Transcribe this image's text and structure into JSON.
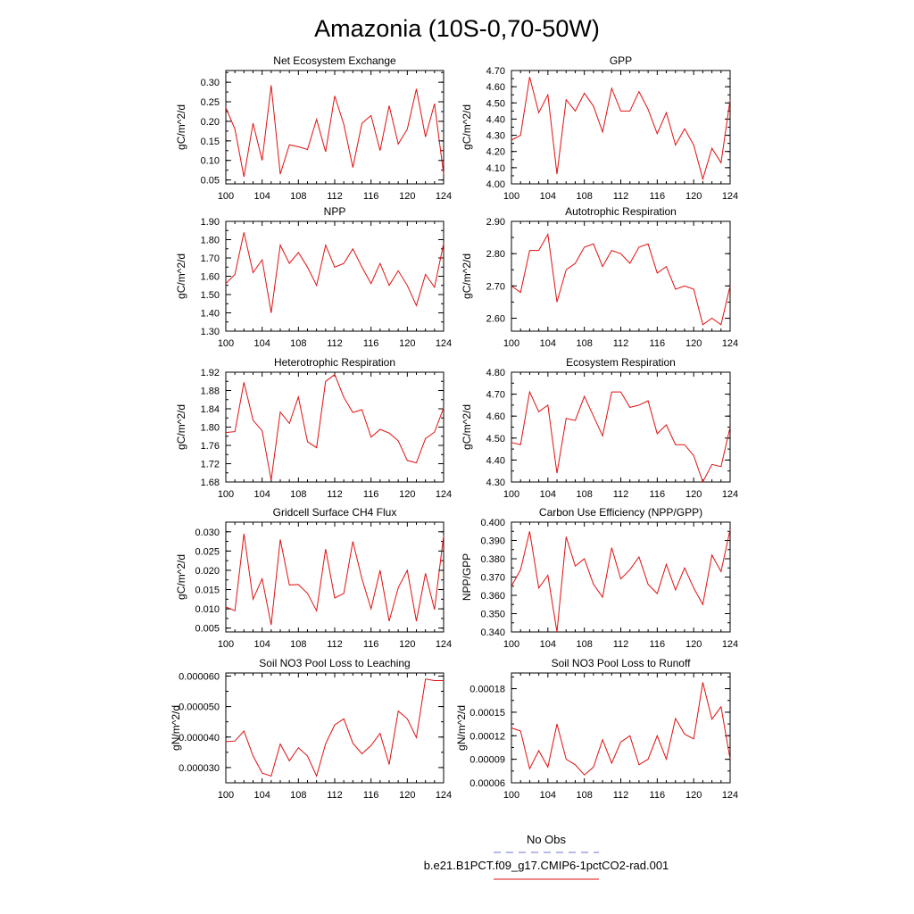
{
  "page": {
    "title": "Amazonia (10S-0,70-50W)"
  },
  "legend": {
    "entries": [
      {
        "label": "No Obs",
        "color": "#6f6fd6",
        "dash": true
      },
      {
        "label": "b.e21.B1PCT.f09_g17.CMIP6-1pctCO2-rad.001",
        "color": "#e01010",
        "dash": false
      }
    ]
  },
  "chart_data": [
    {
      "type": "line",
      "title": "Net Ecosystem Exchange",
      "ylabel": "gC/m^2/d",
      "xlim": [
        100,
        124
      ],
      "ylim": [
        0.04,
        0.33
      ],
      "xticks": [
        100,
        104,
        108,
        112,
        116,
        120,
        124
      ],
      "yticks": [
        0.05,
        0.1,
        0.15,
        0.2,
        0.25,
        0.3
      ],
      "ytick_labels": [
        "0.05",
        "0.10",
        "0.15",
        "0.20",
        "0.25",
        "0.30"
      ],
      "series": [
        {
          "color": "#e01010",
          "x": [
            100,
            101,
            102,
            103,
            104,
            105,
            106,
            107,
            108,
            109,
            110,
            111,
            112,
            113,
            114,
            115,
            116,
            117,
            118,
            119,
            120,
            121,
            122,
            123,
            124
          ],
          "y": [
            0.235,
            0.18,
            0.058,
            0.195,
            0.1,
            0.292,
            0.065,
            0.14,
            0.135,
            0.128,
            0.205,
            0.122,
            0.265,
            0.192,
            0.082,
            0.195,
            0.215,
            0.125,
            0.24,
            0.142,
            0.18,
            0.283,
            0.16,
            0.245,
            0.065
          ]
        }
      ]
    },
    {
      "type": "line",
      "title": "GPP",
      "ylabel": "gC/m^2/d",
      "xlim": [
        100,
        124
      ],
      "ylim": [
        4.0,
        4.7
      ],
      "xticks": [
        100,
        104,
        108,
        112,
        116,
        120,
        124
      ],
      "yticks": [
        4.0,
        4.1,
        4.2,
        4.3,
        4.4,
        4.5,
        4.6,
        4.7
      ],
      "ytick_labels": [
        "4.00",
        "4.10",
        "4.20",
        "4.30",
        "4.40",
        "4.50",
        "4.60",
        "4.70"
      ],
      "series": [
        {
          "color": "#e01010",
          "x": [
            100,
            101,
            102,
            103,
            104,
            105,
            106,
            107,
            108,
            109,
            110,
            111,
            112,
            113,
            114,
            115,
            116,
            117,
            118,
            119,
            120,
            121,
            122,
            123,
            124
          ],
          "y": [
            4.27,
            4.3,
            4.66,
            4.44,
            4.55,
            4.06,
            4.52,
            4.45,
            4.56,
            4.48,
            4.32,
            4.59,
            4.45,
            4.45,
            4.57,
            4.46,
            4.31,
            4.44,
            4.24,
            4.34,
            4.24,
            4.03,
            4.22,
            4.13,
            4.52
          ]
        }
      ]
    },
    {
      "type": "line",
      "title": "NPP",
      "ylabel": "gC/m^2/d",
      "xlim": [
        100,
        124
      ],
      "ylim": [
        1.3,
        1.9
      ],
      "xticks": [
        100,
        104,
        108,
        112,
        116,
        120,
        124
      ],
      "yticks": [
        1.3,
        1.4,
        1.5,
        1.6,
        1.7,
        1.8,
        1.9
      ],
      "ytick_labels": [
        "1.30",
        "1.40",
        "1.50",
        "1.60",
        "1.70",
        "1.80",
        "1.90"
      ],
      "series": [
        {
          "color": "#e01010",
          "x": [
            100,
            101,
            102,
            103,
            104,
            105,
            106,
            107,
            108,
            109,
            110,
            111,
            112,
            113,
            114,
            115,
            116,
            117,
            118,
            119,
            120,
            121,
            122,
            123,
            124
          ],
          "y": [
            1.56,
            1.61,
            1.84,
            1.62,
            1.69,
            1.4,
            1.77,
            1.67,
            1.73,
            1.65,
            1.55,
            1.77,
            1.65,
            1.67,
            1.75,
            1.65,
            1.56,
            1.67,
            1.55,
            1.63,
            1.55,
            1.44,
            1.61,
            1.54,
            1.78
          ]
        }
      ]
    },
    {
      "type": "line",
      "title": "Autotrophic Respiration",
      "ylabel": "gC/m^2/d",
      "xlim": [
        100,
        124
      ],
      "ylim": [
        2.56,
        2.9
      ],
      "xticks": [
        100,
        104,
        108,
        112,
        116,
        120,
        124
      ],
      "yticks": [
        2.6,
        2.7,
        2.8,
        2.9
      ],
      "ytick_labels": [
        "2.60",
        "2.70",
        "2.80",
        "2.90"
      ],
      "series": [
        {
          "color": "#e01010",
          "x": [
            100,
            101,
            102,
            103,
            104,
            105,
            106,
            107,
            108,
            109,
            110,
            111,
            112,
            113,
            114,
            115,
            116,
            117,
            118,
            119,
            120,
            121,
            122,
            123,
            124
          ],
          "y": [
            2.7,
            2.68,
            2.81,
            2.81,
            2.86,
            2.65,
            2.75,
            2.77,
            2.82,
            2.83,
            2.76,
            2.81,
            2.8,
            2.77,
            2.82,
            2.83,
            2.74,
            2.76,
            2.69,
            2.7,
            2.69,
            2.58,
            2.6,
            2.58,
            2.7
          ]
        }
      ]
    },
    {
      "type": "line",
      "title": "Heterotrophic Respiration",
      "ylabel": "gC/m^2/d",
      "xlim": [
        100,
        124
      ],
      "ylim": [
        1.68,
        1.92
      ],
      "xticks": [
        100,
        104,
        108,
        112,
        116,
        120,
        124
      ],
      "yticks": [
        1.68,
        1.72,
        1.76,
        1.8,
        1.84,
        1.88,
        1.92
      ],
      "ytick_labels": [
        "1.68",
        "1.72",
        "1.76",
        "1.80",
        "1.84",
        "1.88",
        "1.92"
      ],
      "series": [
        {
          "color": "#e01010",
          "x": [
            100,
            101,
            102,
            103,
            104,
            105,
            106,
            107,
            108,
            109,
            110,
            111,
            112,
            113,
            114,
            115,
            116,
            117,
            118,
            119,
            120,
            121,
            122,
            123,
            124
          ],
          "y": [
            1.788,
            1.79,
            1.898,
            1.815,
            1.792,
            1.684,
            1.833,
            1.808,
            1.866,
            1.768,
            1.755,
            1.9,
            1.915,
            1.865,
            1.832,
            1.838,
            1.778,
            1.795,
            1.787,
            1.77,
            1.727,
            1.722,
            1.775,
            1.789,
            1.842
          ]
        }
      ]
    },
    {
      "type": "line",
      "title": "Ecosystem Respiration",
      "ylabel": "gC/m^2/d",
      "xlim": [
        100,
        124
      ],
      "ylim": [
        4.3,
        4.8
      ],
      "xticks": [
        100,
        104,
        108,
        112,
        116,
        120,
        124
      ],
      "yticks": [
        4.3,
        4.4,
        4.5,
        4.6,
        4.7,
        4.8
      ],
      "ytick_labels": [
        "4.30",
        "4.40",
        "4.50",
        "4.60",
        "4.70",
        "4.80"
      ],
      "series": [
        {
          "color": "#e01010",
          "x": [
            100,
            101,
            102,
            103,
            104,
            105,
            106,
            107,
            108,
            109,
            110,
            111,
            112,
            113,
            114,
            115,
            116,
            117,
            118,
            119,
            120,
            121,
            122,
            123,
            124
          ],
          "y": [
            4.48,
            4.47,
            4.71,
            4.62,
            4.65,
            4.34,
            4.59,
            4.58,
            4.69,
            4.6,
            4.51,
            4.71,
            4.71,
            4.64,
            4.65,
            4.67,
            4.52,
            4.56,
            4.47,
            4.47,
            4.42,
            4.3,
            4.38,
            4.37,
            4.55
          ]
        }
      ]
    },
    {
      "type": "line",
      "title": "Gridcell Surface CH4 Flux",
      "ylabel": "gC/m^2/d",
      "xlim": [
        100,
        124
      ],
      "ylim": [
        0.004,
        0.0325
      ],
      "xticks": [
        100,
        104,
        108,
        112,
        116,
        120,
        124
      ],
      "yticks": [
        0.005,
        0.01,
        0.015,
        0.02,
        0.025,
        0.03
      ],
      "ytick_labels": [
        "0.005",
        "0.010",
        "0.015",
        "0.020",
        "0.025",
        "0.030"
      ],
      "series": [
        {
          "color": "#e01010",
          "x": [
            100,
            101,
            102,
            103,
            104,
            105,
            106,
            107,
            108,
            109,
            110,
            111,
            112,
            113,
            114,
            115,
            116,
            117,
            118,
            119,
            120,
            121,
            122,
            123,
            124
          ],
          "y": [
            0.0105,
            0.0095,
            0.0295,
            0.0125,
            0.0178,
            0.0058,
            0.028,
            0.0162,
            0.0163,
            0.014,
            0.0095,
            0.0255,
            0.0128,
            0.014,
            0.0275,
            0.0178,
            0.01,
            0.02,
            0.0068,
            0.0155,
            0.02,
            0.0068,
            0.0192,
            0.0098,
            0.029
          ]
        }
      ]
    },
    {
      "type": "line",
      "title": "Carbon Use Efficiency (NPP/GPP)",
      "ylabel": "NPP/GPP",
      "xlim": [
        100,
        124
      ],
      "ylim": [
        0.34,
        0.4
      ],
      "xticks": [
        100,
        104,
        108,
        112,
        116,
        120,
        124
      ],
      "yticks": [
        0.34,
        0.35,
        0.36,
        0.37,
        0.38,
        0.39,
        0.4
      ],
      "ytick_labels": [
        "0.340",
        "0.350",
        "0.360",
        "0.370",
        "0.380",
        "0.390",
        "0.400"
      ],
      "series": [
        {
          "color": "#e01010",
          "x": [
            100,
            101,
            102,
            103,
            104,
            105,
            106,
            107,
            108,
            109,
            110,
            111,
            112,
            113,
            114,
            115,
            116,
            117,
            118,
            119,
            120,
            121,
            122,
            123,
            124
          ],
          "y": [
            0.365,
            0.374,
            0.395,
            0.364,
            0.371,
            0.34,
            0.392,
            0.376,
            0.38,
            0.366,
            0.359,
            0.386,
            0.369,
            0.374,
            0.381,
            0.366,
            0.361,
            0.377,
            0.363,
            0.375,
            0.364,
            0.355,
            0.382,
            0.373,
            0.396
          ]
        }
      ]
    },
    {
      "type": "line",
      "title": "Soil NO3 Pool Loss to Leaching",
      "ylabel": "gN/m^2/d",
      "xlim": [
        100,
        124
      ],
      "ylim": [
        2.5e-05,
        6.1e-05
      ],
      "xticks": [
        100,
        104,
        108,
        112,
        116,
        120,
        124
      ],
      "yticks": [
        3e-05,
        4e-05,
        5e-05,
        6e-05
      ],
      "ytick_labels": [
        "0.000030",
        "0.000040",
        "0.000050",
        "0.000060"
      ],
      "series": [
        {
          "color": "#e01010",
          "x": [
            100,
            101,
            102,
            103,
            104,
            105,
            106,
            107,
            108,
            109,
            110,
            111,
            112,
            113,
            114,
            115,
            116,
            117,
            118,
            119,
            120,
            121,
            122,
            123,
            124
          ],
          "y": [
            3.85e-05,
            3.87e-05,
            4.2e-05,
            3.38e-05,
            2.82e-05,
            2.72e-05,
            3.77e-05,
            3.22e-05,
            3.65e-05,
            3.38e-05,
            2.72e-05,
            3.78e-05,
            4.4e-05,
            4.6e-05,
            3.8e-05,
            3.45e-05,
            3.72e-05,
            4.12e-05,
            3.1e-05,
            4.85e-05,
            4.6e-05,
            3.98e-05,
            5.9e-05,
            5.85e-05,
            5.85e-05
          ]
        }
      ]
    },
    {
      "type": "line",
      "title": "Soil NO3 Pool Loss to Runoff",
      "ylabel": "gN/m^2/d",
      "xlim": [
        100,
        124
      ],
      "ylim": [
        6e-05,
        0.0002
      ],
      "xticks": [
        100,
        104,
        108,
        112,
        116,
        120,
        124
      ],
      "yticks": [
        6e-05,
        9e-05,
        0.00012,
        0.00015,
        0.00018
      ],
      "ytick_labels": [
        "0.00006",
        "0.00009",
        "0.00012",
        "0.00015",
        "0.00018"
      ],
      "series": [
        {
          "color": "#e01010",
          "x": [
            100,
            101,
            102,
            103,
            104,
            105,
            106,
            107,
            108,
            109,
            110,
            111,
            112,
            113,
            114,
            115,
            116,
            117,
            118,
            119,
            120,
            121,
            122,
            123,
            124
          ],
          "y": [
            0.00013,
            0.000126,
            7.8e-05,
            0.000101,
            8e-05,
            0.000135,
            9e-05,
            8.3e-05,
            7e-05,
            8e-05,
            0.000115,
            8.5e-05,
            0.000112,
            0.00012,
            8.3e-05,
            9e-05,
            0.00012,
            9e-05,
            0.000142,
            0.000122,
            0.000116,
            0.000188,
            0.000141,
            0.000157,
            9e-05
          ]
        }
      ]
    }
  ]
}
